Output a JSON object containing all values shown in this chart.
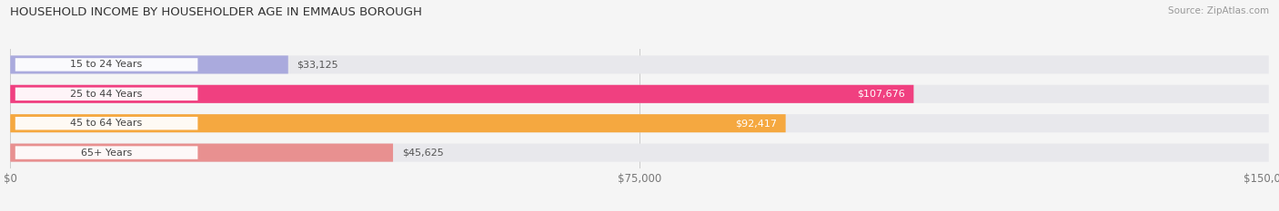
{
  "title": "HOUSEHOLD INCOME BY HOUSEHOLDER AGE IN EMMAUS BOROUGH",
  "source": "Source: ZipAtlas.com",
  "categories": [
    "15 to 24 Years",
    "25 to 44 Years",
    "45 to 64 Years",
    "65+ Years"
  ],
  "values": [
    33125,
    107676,
    92417,
    45625
  ],
  "bar_colors": [
    "#aaaadd",
    "#f04080",
    "#f5a840",
    "#e89090"
  ],
  "bar_bg_color": "#e8e8ec",
  "label_bg": "#ffffff",
  "label_text_color": "#444444",
  "max_value": 150000,
  "x_ticks": [
    0,
    75000,
    150000
  ],
  "x_tick_labels": [
    "$0",
    "$75,000",
    "$150,000"
  ],
  "fig_bg_color": "#f5f5f5",
  "value_label_colors_inside": [
    "#555555",
    "#ffffff",
    "#ffffff",
    "#555555"
  ],
  "value_labels": [
    "$33,125",
    "$107,676",
    "$92,417",
    "$45,625"
  ],
  "value_inside_threshold": 0.35
}
